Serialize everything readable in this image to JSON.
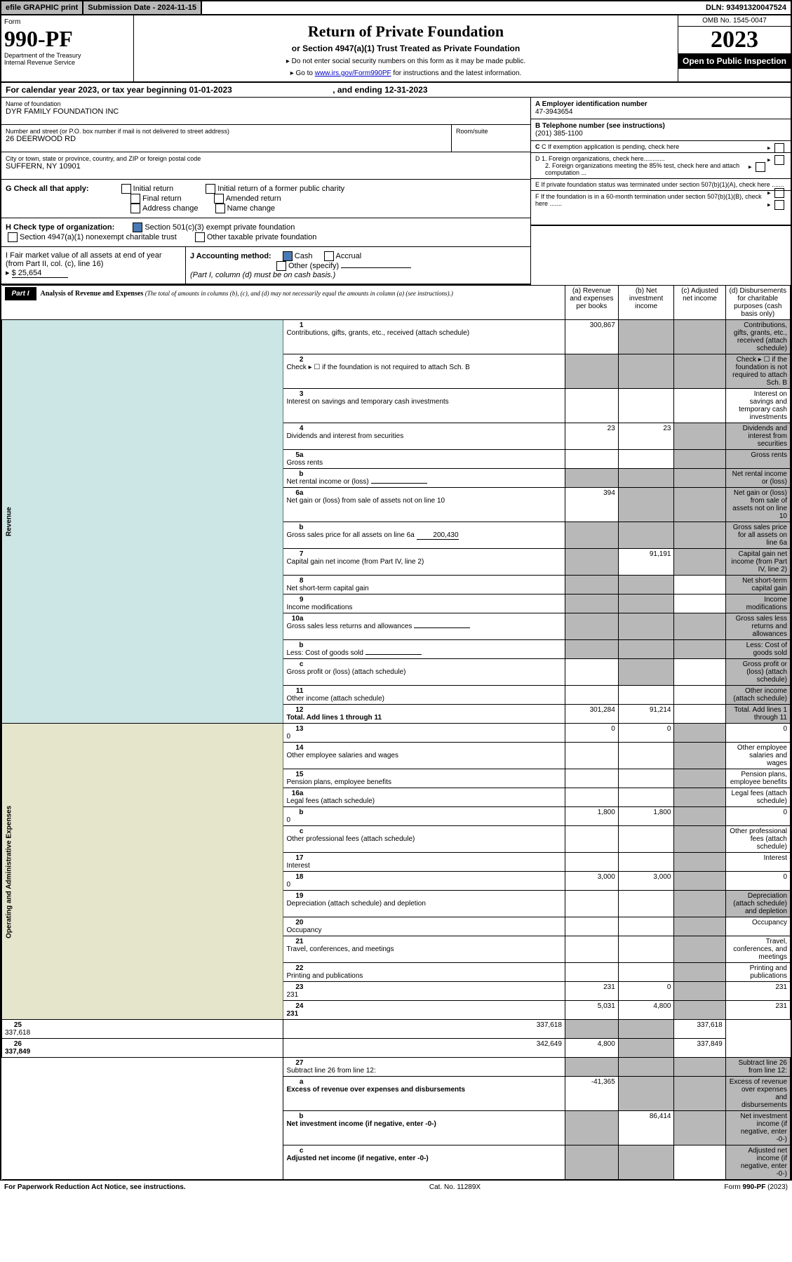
{
  "topbar": {
    "efile": "efile GRAPHIC print",
    "subdate_label": "Submission Date - ",
    "subdate": "2024-11-15",
    "dln_label": "DLN: ",
    "dln": "93491320047524"
  },
  "header": {
    "form_word": "Form",
    "form_no": "990-PF",
    "dept": "Department of the Treasury",
    "irs": "Internal Revenue Service",
    "title": "Return of Private Foundation",
    "subtitle": "or Section 4947(a)(1) Trust Treated as Private Foundation",
    "note1": "▸ Do not enter social security numbers on this form as it may be made public.",
    "note2": "▸ Go to ",
    "link": "www.irs.gov/Form990PF",
    "note3": " for instructions and the latest information.",
    "omb": "OMB No. 1545-0047",
    "year": "2023",
    "open": "Open to Public Inspection"
  },
  "cal": {
    "pre": "For calendar year 2023, or tax year beginning ",
    "begin": "01-01-2023",
    "mid": ", and ending ",
    "end": "12-31-2023"
  },
  "info": {
    "name_lbl": "Name of foundation",
    "name": "DYR FAMILY FOUNDATION INC",
    "addr_lbl": "Number and street (or P.O. box number if mail is not delivered to street address)",
    "addr": "26 DEERWOOD RD",
    "room_lbl": "Room/suite",
    "city_lbl": "City or town, state or province, country, and ZIP or foreign postal code",
    "city": "SUFFERN, NY  10901",
    "a_lbl": "A Employer identification number",
    "a": "47-3943654",
    "b_lbl": "B Telephone number (see instructions)",
    "b": "(201) 385-1100",
    "c_lbl": "C If exemption application is pending, check here",
    "d1": "D 1. Foreign organizations, check here............",
    "d2": "2. Foreign organizations meeting the 85% test, check here and attach computation ...",
    "e_lbl": "E  If private foundation status was terminated under section 507(b)(1)(A), check here .......",
    "f_lbl": "F  If the foundation is in a 60-month termination under section 507(b)(1)(B), check here .......",
    "g_lbl": "G Check all that apply:",
    "g1": "Initial return",
    "g2": "Initial return of a former public charity",
    "g3": "Final return",
    "g4": "Amended return",
    "g5": "Address change",
    "g6": "Name change",
    "h_lbl": "H Check type of organization:",
    "h1": "Section 501(c)(3) exempt private foundation",
    "h2": "Section 4947(a)(1) nonexempt charitable trust",
    "h3": "Other taxable private foundation",
    "i_lbl": "I Fair market value of all assets at end of year (from Part II, col. (c), line 16)",
    "i_val": "$  25,654",
    "j_lbl": "J Accounting method:",
    "j1": "Cash",
    "j2": "Accrual",
    "j3": "Other (specify)",
    "j_note": "(Part I, column (d) must be on cash basis.)"
  },
  "part1": {
    "tab": "Part I",
    "title": "Analysis of Revenue and Expenses ",
    "note": "(The total of amounts in columns (b), (c), and (d) may not necessarily equal the amounts in column (a) (see instructions).)",
    "cols": {
      "a": "(a)    Revenue and expenses per books",
      "b": "(b)    Net investment income",
      "c": "(c)    Adjusted net income",
      "d": "(d)   Disbursements for charitable purposes (cash basis only)"
    },
    "side_rev": "Revenue",
    "side_exp": "Operating and Administrative Expenses"
  },
  "rows": [
    {
      "n": "1",
      "d": "Contributions, gifts, grants, etc., received (attach schedule)",
      "a": "300,867",
      "bS": true,
      "cS": true,
      "dS": true
    },
    {
      "n": "2",
      "d": "Check ▸ ☐ if the foundation is not required to attach Sch. B",
      "noamt": true
    },
    {
      "n": "3",
      "d": "Interest on savings and temporary cash investments"
    },
    {
      "n": "4",
      "d": "Dividends and interest from securities",
      "a": "23",
      "b": "23",
      "cS": true,
      "dS": true
    },
    {
      "n": "5a",
      "d": "Gross rents",
      "cS": true,
      "dS": true
    },
    {
      "n": "b",
      "d": "Net rental income or (loss)",
      "noamt": true,
      "inline": true
    },
    {
      "n": "6a",
      "d": "Net gain or (loss) from sale of assets not on line 10",
      "a": "394",
      "bS": true,
      "cS": true,
      "dS": true
    },
    {
      "n": "b",
      "d": "Gross sales price for all assets on line 6a",
      "inline_val": "200,430",
      "noamt": true,
      "allS": true
    },
    {
      "n": "7",
      "d": "Capital gain net income (from Part IV, line 2)",
      "aS": true,
      "b": "91,191",
      "cS": true,
      "dS": true
    },
    {
      "n": "8",
      "d": "Net short-term capital gain",
      "aS": true,
      "bS": true,
      "dS": true
    },
    {
      "n": "9",
      "d": "Income modifications",
      "aS": true,
      "bS": true,
      "dS": true
    },
    {
      "n": "10a",
      "d": "Gross sales less returns and allowances",
      "noamt": true,
      "inline": true,
      "allS": true
    },
    {
      "n": "b",
      "d": "Less: Cost of goods sold",
      "noamt": true,
      "inline": true,
      "allS": true
    },
    {
      "n": "c",
      "d": "Gross profit or (loss) (attach schedule)",
      "bS": true,
      "dS": true
    },
    {
      "n": "11",
      "d": "Other income (attach schedule)",
      "dS": true
    },
    {
      "n": "12",
      "d": "Total. Add lines 1 through 11",
      "bold": true,
      "a": "301,284",
      "b": "91,214",
      "dS": true
    },
    {
      "n": "13",
      "d": "0",
      "a": "0",
      "b": "0",
      "cS": true,
      "sec": "exp"
    },
    {
      "n": "14",
      "d": "Other employee salaries and wages",
      "cS": true,
      "sec": "exp"
    },
    {
      "n": "15",
      "d": "Pension plans, employee benefits",
      "cS": true,
      "sec": "exp"
    },
    {
      "n": "16a",
      "d": "Legal fees (attach schedule)",
      "cS": true,
      "sec": "exp"
    },
    {
      "n": "b",
      "d": "0",
      "a": "1,800",
      "b": "1,800",
      "cS": true,
      "sec": "exp"
    },
    {
      "n": "c",
      "d": "Other professional fees (attach schedule)",
      "cS": true,
      "sec": "exp"
    },
    {
      "n": "17",
      "d": "Interest",
      "cS": true,
      "sec": "exp"
    },
    {
      "n": "18",
      "d": "0",
      "a": "3,000",
      "b": "3,000",
      "cS": true,
      "sec": "exp"
    },
    {
      "n": "19",
      "d": "Depreciation (attach schedule) and depletion",
      "cS": true,
      "dS": true,
      "sec": "exp"
    },
    {
      "n": "20",
      "d": "Occupancy",
      "cS": true,
      "sec": "exp"
    },
    {
      "n": "21",
      "d": "Travel, conferences, and meetings",
      "cS": true,
      "sec": "exp"
    },
    {
      "n": "22",
      "d": "Printing and publications",
      "cS": true,
      "sec": "exp"
    },
    {
      "n": "23",
      "d": "231",
      "a": "231",
      "b": "0",
      "cS": true,
      "sec": "exp"
    },
    {
      "n": "24",
      "d": "231",
      "bold": true,
      "a": "5,031",
      "b": "4,800",
      "cS": true,
      "sec": "exp"
    },
    {
      "n": "25",
      "d": "337,618",
      "a": "337,618",
      "bS": true,
      "cS": true,
      "sec": "exp"
    },
    {
      "n": "26",
      "d": "337,849",
      "bold": true,
      "a": "342,649",
      "b": "4,800",
      "cS": true,
      "sec": "exp"
    },
    {
      "n": "27",
      "d": "Subtract line 26 from line 12:",
      "allS": true,
      "sec": "net"
    },
    {
      "n": "a",
      "d": "Excess of revenue over expenses and disbursements",
      "bold": true,
      "a": "-41,365",
      "bS": true,
      "cS": true,
      "dS": true,
      "sec": "net"
    },
    {
      "n": "b",
      "d": "Net investment income (if negative, enter -0-)",
      "bold": true,
      "aS": true,
      "b": "86,414",
      "cS": true,
      "dS": true,
      "sec": "net"
    },
    {
      "n": "c",
      "d": "Adjusted net income (if negative, enter -0-)",
      "bold": true,
      "aS": true,
      "bS": true,
      "dS": true,
      "sec": "net"
    }
  ],
  "footer": {
    "left": "For Paperwork Reduction Act Notice, see instructions.",
    "mid": "Cat. No. 11289X",
    "right": "Form 990-PF (2023)"
  }
}
